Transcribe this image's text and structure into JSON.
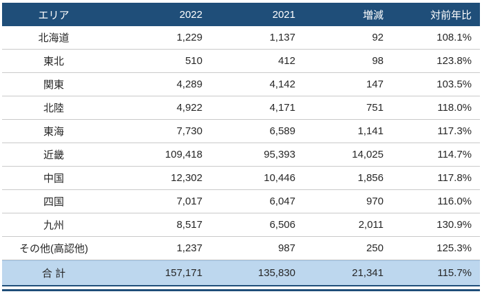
{
  "chart_data": {
    "type": "table",
    "columns": [
      "エリア",
      "2022",
      "2021",
      "増減",
      "対前年比"
    ],
    "rows": [
      [
        "北海道",
        1229,
        1137,
        92,
        "108.1%"
      ],
      [
        "東北",
        510,
        412,
        98,
        "123.8%"
      ],
      [
        "関東",
        4289,
        4142,
        147,
        "103.5%"
      ],
      [
        "北陸",
        4922,
        4171,
        751,
        "118.0%"
      ],
      [
        "東海",
        7730,
        6589,
        1141,
        "117.3%"
      ],
      [
        "近畿",
        109418,
        95393,
        14025,
        "114.7%"
      ],
      [
        "中国",
        12302,
        10446,
        1856,
        "117.8%"
      ],
      [
        "四国",
        7017,
        6047,
        970,
        "116.0%"
      ],
      [
        "九州",
        8517,
        6506,
        2011,
        "130.9%"
      ],
      [
        "その他(高認他)",
        1237,
        987,
        250,
        "125.3%"
      ]
    ],
    "total_row": [
      "合 計",
      157171,
      135830,
      21341,
      "115.7%"
    ]
  },
  "table": {
    "headers": [
      "エリア",
      "2022",
      "2021",
      "増減",
      "対前年比"
    ],
    "rows": [
      {
        "area": "北海道",
        "y2022": "1,229",
        "y2021": "1,137",
        "diff": "92",
        "yoy": "108.1%"
      },
      {
        "area": "東北",
        "y2022": "510",
        "y2021": "412",
        "diff": "98",
        "yoy": "123.8%"
      },
      {
        "area": "関東",
        "y2022": "4,289",
        "y2021": "4,142",
        "diff": "147",
        "yoy": "103.5%"
      },
      {
        "area": "北陸",
        "y2022": "4,922",
        "y2021": "4,171",
        "diff": "751",
        "yoy": "118.0%"
      },
      {
        "area": "東海",
        "y2022": "7,730",
        "y2021": "6,589",
        "diff": "1,141",
        "yoy": "117.3%"
      },
      {
        "area": "近畿",
        "y2022": "109,418",
        "y2021": "95,393",
        "diff": "14,025",
        "yoy": "114.7%"
      },
      {
        "area": "中国",
        "y2022": "12,302",
        "y2021": "10,446",
        "diff": "1,856",
        "yoy": "117.8%"
      },
      {
        "area": "四国",
        "y2022": "7,017",
        "y2021": "6,047",
        "diff": "970",
        "yoy": "116.0%"
      },
      {
        "area": "九州",
        "y2022": "8,517",
        "y2021": "6,506",
        "diff": "2,011",
        "yoy": "130.9%"
      },
      {
        "area": "その他(高認他)",
        "y2022": "1,237",
        "y2021": "987",
        "diff": "250",
        "yoy": "125.3%"
      }
    ],
    "total": {
      "area": "合 計",
      "y2022": "157,171",
      "y2021": "135,830",
      "diff": "21,341",
      "yoy": "115.7%"
    }
  },
  "colors": {
    "header_bg": "#1f4e79",
    "header_text": "#ffffff",
    "total_bg": "#bdd7ee",
    "row_border": "#c9c9c9",
    "accent_navy": "#1f4e79"
  }
}
